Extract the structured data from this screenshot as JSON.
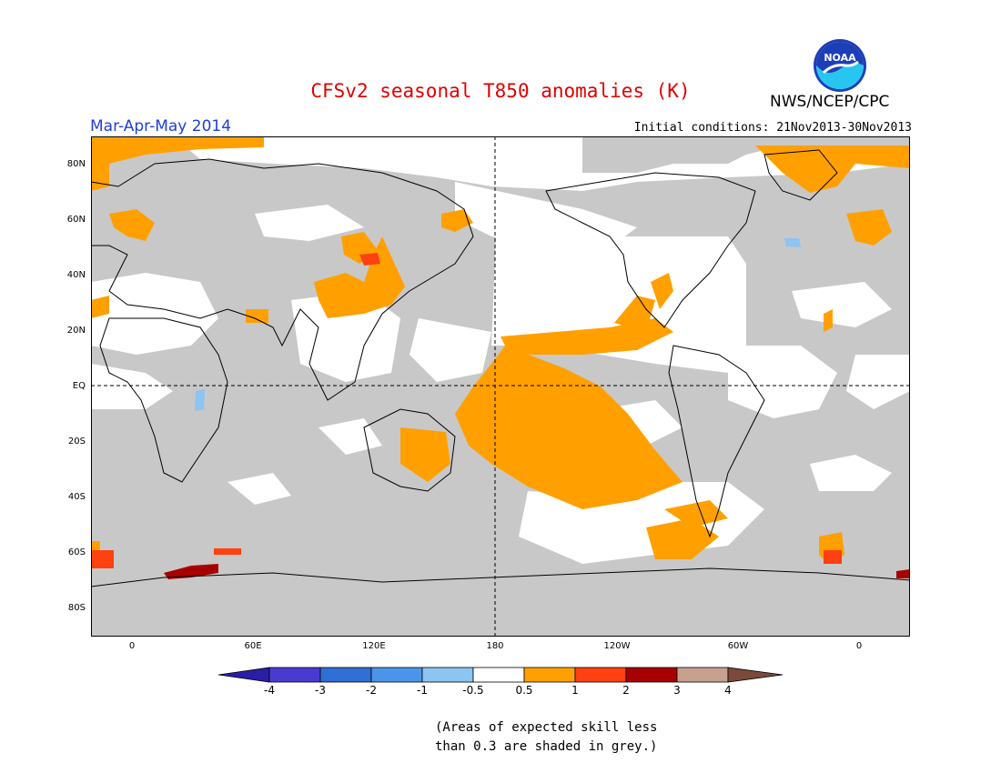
{
  "header": {
    "title": "CFSv2 seasonal T850 anomalies (K)",
    "org": "NWS/NCEP/CPC",
    "logo_text": "NOAA",
    "period": "Mar-Apr-May 2014",
    "initial_conditions": "Initial conditions: 21Nov2013-30Nov2013"
  },
  "map": {
    "lat_labels": [
      "80N",
      "60N",
      "40N",
      "20N",
      "EQ",
      "20S",
      "40S",
      "60S",
      "80S"
    ],
    "lon_labels": [
      "0",
      "60E",
      "120E",
      "180",
      "120W",
      "60W",
      "0"
    ],
    "projection": "cylindrical equidistant, centered on 180",
    "colors": {
      "skill_mask_grey": "#c8c8c8",
      "land_outline": "#000000"
    }
  },
  "colorbar": {
    "labels": [
      "-4",
      "-3",
      "-2",
      "-1",
      "-0.5",
      "0.5",
      "1",
      "2",
      "3",
      "4"
    ],
    "colors": [
      "#2a1ea6",
      "#4a3bd0",
      "#2f6fd6",
      "#4a95ea",
      "#8cc4f2",
      "#ffffff",
      "#ffa000",
      "#ff4010",
      "#a80000",
      "#c8a090",
      "#7a4a3a"
    ]
  },
  "note": {
    "line1": "(Areas of expected skill less",
    "line2": "than 0.3 are shaded in grey.)"
  }
}
